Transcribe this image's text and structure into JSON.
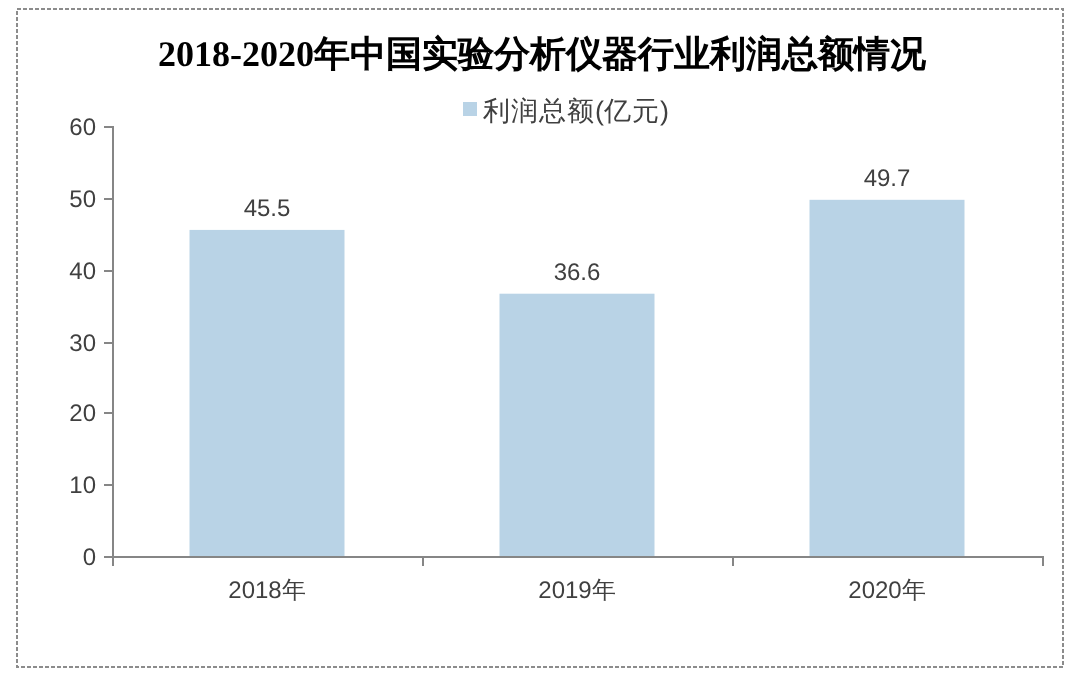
{
  "chart_data": {
    "type": "bar",
    "title": "2018-2020年中国实验分析仪器行业利润总额情况",
    "categories": [
      "2018年",
      "2019年",
      "2020年"
    ],
    "series": [
      {
        "name": "利润总额(亿元)",
        "color": "#b9d3e6",
        "values": [
          45.5,
          36.6,
          49.7
        ]
      }
    ],
    "ylim": [
      0,
      60
    ],
    "yticks": [
      0,
      10,
      20,
      30,
      40,
      50,
      60
    ],
    "data_labels": true,
    "legend": "top",
    "grid": false
  }
}
